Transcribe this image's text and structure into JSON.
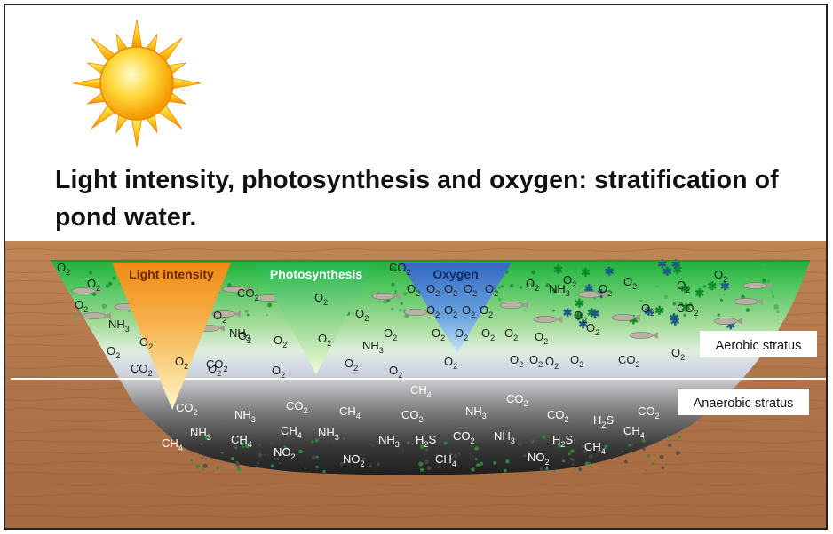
{
  "title": "Light intensity, photosynthesis and oxygen: stratification of pond water.",
  "gradients": {
    "light": "Light intensity",
    "photosynthesis": "Photosynthesis",
    "oxygen": "Oxygen"
  },
  "strata": {
    "aerobic": "Aerobic stratus",
    "anaerobic": "Anaerobic stratus"
  },
  "colors": {
    "light": "#f39a1e",
    "photosynthesis": "#35c25a",
    "oxygen": "#3f78c9",
    "water_top": "#25b845",
    "water_mid": "#cfe7c8",
    "water_bottom": "#2b2b2b",
    "soil": "#b0764a"
  },
  "aerobic_molecules": [
    {
      "f": "O",
      "s": "2"
    },
    {
      "f": "O",
      "s": "2"
    },
    {
      "f": "O",
      "s": "2"
    },
    {
      "f": "NH",
      "s": "3"
    },
    {
      "f": "O",
      "s": "2"
    },
    {
      "f": "O",
      "s": "2"
    },
    {
      "f": "CO",
      "s": "2"
    },
    {
      "f": "O",
      "s": "2"
    },
    {
      "f": "O",
      "s": "2"
    },
    {
      "f": "O",
      "s": "2"
    },
    {
      "f": "NH",
      "s": "3"
    },
    {
      "f": "CO",
      "s": "2"
    },
    {
      "f": "CO",
      "s": "2"
    },
    {
      "f": "O",
      "s": "2"
    },
    {
      "f": "O",
      "s": "2"
    },
    {
      "f": "O",
      "s": "2"
    },
    {
      "f": "O",
      "s": "2"
    },
    {
      "f": "O",
      "s": "2"
    },
    {
      "f": "O",
      "s": "2"
    },
    {
      "f": "NH",
      "s": "3"
    },
    {
      "f": "O",
      "s": "2"
    },
    {
      "f": "O",
      "s": "2"
    },
    {
      "f": "O",
      "s": "2"
    },
    {
      "f": "O",
      "s": "2"
    },
    {
      "f": "O",
      "s": "2"
    },
    {
      "f": "O",
      "s": "2"
    },
    {
      "f": "O",
      "s": "2"
    },
    {
      "f": "O",
      "s": "2"
    },
    {
      "f": "O",
      "s": "2"
    },
    {
      "f": "O",
      "s": "2"
    },
    {
      "f": "O",
      "s": "2"
    },
    {
      "f": "O",
      "s": "2"
    },
    {
      "f": "O",
      "s": "2"
    },
    {
      "f": "O",
      "s": "2"
    },
    {
      "f": "O",
      "s": "2"
    },
    {
      "f": "O",
      "s": "2"
    },
    {
      "f": "O",
      "s": "2"
    },
    {
      "f": "O",
      "s": "2"
    },
    {
      "f": "O",
      "s": "2"
    },
    {
      "f": "NH",
      "s": "3"
    },
    {
      "f": "O",
      "s": "2"
    },
    {
      "f": "CO",
      "s": "2"
    },
    {
      "f": "O",
      "s": "2"
    },
    {
      "f": "O",
      "s": "2"
    },
    {
      "f": "O",
      "s": "2"
    },
    {
      "f": "O",
      "s": "2"
    },
    {
      "f": "O",
      "s": "2"
    },
    {
      "f": "O",
      "s": "2"
    },
    {
      "f": "O",
      "s": "2"
    },
    {
      "f": "CO",
      "s": "2"
    },
    {
      "f": "O",
      "s": "2"
    },
    {
      "f": "O",
      "s": "2"
    },
    {
      "f": "O",
      "s": "2"
    },
    {
      "f": "CO",
      "s": "2"
    },
    {
      "f": "O",
      "s": "2"
    },
    {
      "f": "O",
      "s": "2"
    }
  ],
  "anaerobic_molecules": [
    {
      "f": "CO",
      "s": "2"
    },
    {
      "f": "NH",
      "s": "3"
    },
    {
      "f": "CO",
      "s": "2"
    },
    {
      "f": "CH",
      "s": "4"
    },
    {
      "f": "CO",
      "s": "2"
    },
    {
      "f": "NH",
      "s": "3"
    },
    {
      "f": "CO",
      "s": "2"
    },
    {
      "f": "CO",
      "s": "2"
    },
    {
      "f": "H",
      "s": "2",
      "t": "S"
    },
    {
      "f": "CO",
      "s": "2"
    },
    {
      "f": "CH",
      "s": "4"
    },
    {
      "f": "NH",
      "s": "3"
    },
    {
      "f": "CH",
      "s": "4"
    },
    {
      "f": "CH",
      "s": "4"
    },
    {
      "f": "NH",
      "s": "3"
    },
    {
      "f": "NH",
      "s": "3"
    },
    {
      "f": "H",
      "s": "2",
      "t": "S"
    },
    {
      "f": "CO",
      "s": "2"
    },
    {
      "f": "NH",
      "s": "3"
    },
    {
      "f": "H",
      "s": "2",
      "t": "S"
    },
    {
      "f": "CH",
      "s": "4"
    },
    {
      "f": "CH",
      "s": "4"
    },
    {
      "f": "NO",
      "s": "2"
    },
    {
      "f": "NO",
      "s": "2"
    },
    {
      "f": "CH",
      "s": "4"
    },
    {
      "f": "NO",
      "s": "2"
    },
    {
      "f": "CH",
      "s": "4"
    }
  ]
}
